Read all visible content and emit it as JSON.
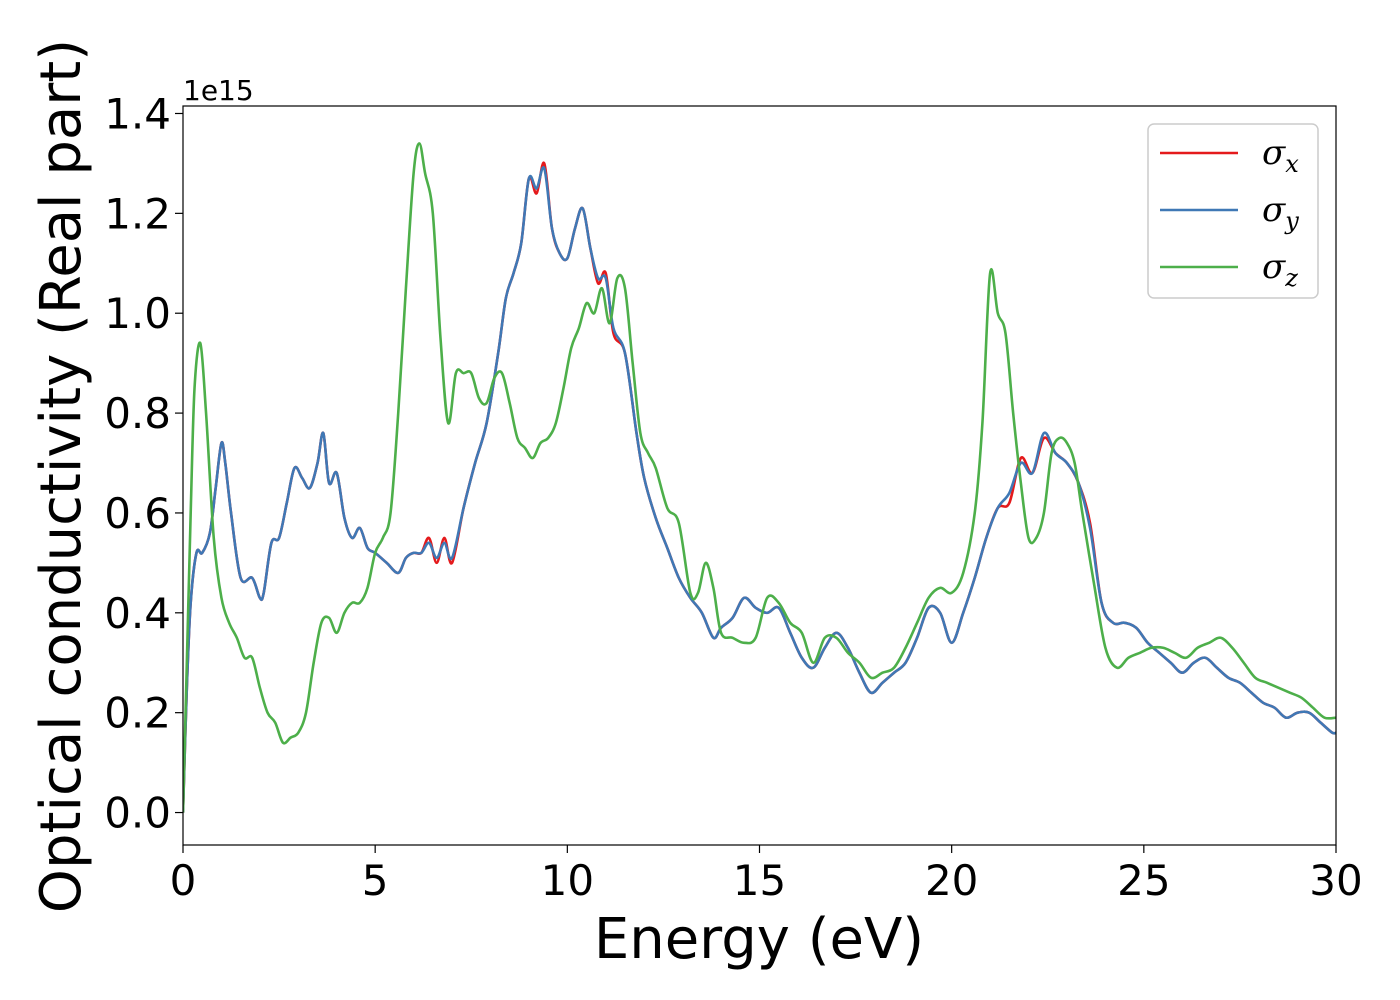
{
  "chart_data": {
    "type": "line",
    "title": "",
    "xlabel": "Energy (eV)",
    "ylabel": "Optical conductivity (Real part)",
    "y_offset_label": "1e15",
    "xlim": [
      0,
      30
    ],
    "ylim": [
      -0.065,
      1.415
    ],
    "x_ticks": [
      0,
      5,
      10,
      15,
      20,
      25,
      30
    ],
    "x_tick_labels": [
      "0",
      "5",
      "10",
      "15",
      "20",
      "25",
      "30"
    ],
    "y_ticks": [
      0.0,
      0.2,
      0.4,
      0.6,
      0.8,
      1.0,
      1.2,
      1.4
    ],
    "y_tick_labels": [
      "0.0",
      "0.2",
      "0.4",
      "0.6",
      "0.8",
      "1.0",
      "1.2",
      "1.4"
    ],
    "grid": false,
    "legend_position": "top-right",
    "series": [
      {
        "name": "σ",
        "subscript": "x",
        "color": "#e41a1c",
        "x": [
          0,
          0.1,
          0.2,
          0.35,
          0.5,
          0.7,
          0.85,
          1.0,
          1.1,
          1.25,
          1.5,
          1.8,
          2.0,
          2.1,
          2.3,
          2.5,
          2.7,
          2.9,
          3.1,
          3.3,
          3.5,
          3.65,
          3.8,
          4.0,
          4.2,
          4.4,
          4.6,
          4.8,
          5.0,
          5.3,
          5.6,
          5.8,
          6.0,
          6.2,
          6.4,
          6.6,
          6.8,
          7.0,
          7.3,
          7.6,
          7.9,
          8.2,
          8.4,
          8.6,
          8.8,
          9.0,
          9.2,
          9.4,
          9.6,
          9.8,
          10.0,
          10.2,
          10.4,
          10.6,
          10.8,
          11.0,
          11.2,
          11.5,
          11.8,
          12.0,
          12.3,
          12.6,
          12.9,
          13.2,
          13.5,
          13.8,
          14.0,
          14.3,
          14.6,
          14.9,
          15.2,
          15.5,
          15.8,
          16.1,
          16.4,
          16.7,
          17.0,
          17.3,
          17.6,
          17.9,
          18.2,
          18.5,
          18.8,
          19.1,
          19.4,
          19.7,
          20.0,
          20.3,
          20.6,
          20.9,
          21.2,
          21.5,
          21.8,
          22.1,
          22.4,
          22.7,
          23.0,
          23.3,
          23.6,
          23.9,
          24.2,
          24.5,
          24.8,
          25.1,
          25.4,
          25.7,
          26.0,
          26.3,
          26.6,
          26.9,
          27.2,
          27.5,
          27.8,
          28.1,
          28.4,
          28.7,
          29.0,
          29.3,
          29.6,
          29.9,
          30.0
        ],
        "values": [
          0.0,
          0.25,
          0.42,
          0.52,
          0.52,
          0.56,
          0.65,
          0.74,
          0.7,
          0.6,
          0.47,
          0.47,
          0.43,
          0.44,
          0.54,
          0.55,
          0.62,
          0.69,
          0.67,
          0.65,
          0.7,
          0.76,
          0.66,
          0.68,
          0.59,
          0.55,
          0.57,
          0.53,
          0.52,
          0.5,
          0.48,
          0.51,
          0.52,
          0.52,
          0.55,
          0.5,
          0.55,
          0.5,
          0.61,
          0.7,
          0.78,
          0.92,
          1.03,
          1.08,
          1.14,
          1.27,
          1.24,
          1.3,
          1.17,
          1.12,
          1.11,
          1.17,
          1.21,
          1.13,
          1.06,
          1.08,
          0.96,
          0.92,
          0.76,
          0.67,
          0.59,
          0.53,
          0.47,
          0.43,
          0.4,
          0.35,
          0.37,
          0.39,
          0.43,
          0.41,
          0.4,
          0.41,
          0.36,
          0.31,
          0.29,
          0.33,
          0.36,
          0.33,
          0.28,
          0.24,
          0.26,
          0.28,
          0.3,
          0.35,
          0.41,
          0.4,
          0.34,
          0.4,
          0.47,
          0.55,
          0.61,
          0.62,
          0.71,
          0.68,
          0.75,
          0.72,
          0.7,
          0.66,
          0.58,
          0.42,
          0.38,
          0.38,
          0.37,
          0.34,
          0.32,
          0.3,
          0.28,
          0.3,
          0.31,
          0.29,
          0.27,
          0.26,
          0.24,
          0.22,
          0.21,
          0.19,
          0.2,
          0.2,
          0.18,
          0.16,
          0.16
        ]
      },
      {
        "name": "σ",
        "subscript": "y",
        "color": "#3f78b5",
        "x": [
          0,
          0.1,
          0.2,
          0.35,
          0.5,
          0.7,
          0.85,
          1.0,
          1.1,
          1.25,
          1.5,
          1.8,
          2.0,
          2.1,
          2.3,
          2.5,
          2.7,
          2.9,
          3.1,
          3.3,
          3.5,
          3.65,
          3.8,
          4.0,
          4.2,
          4.4,
          4.6,
          4.8,
          5.0,
          5.3,
          5.6,
          5.8,
          6.0,
          6.2,
          6.4,
          6.6,
          6.8,
          7.0,
          7.3,
          7.6,
          7.9,
          8.2,
          8.4,
          8.6,
          8.8,
          9.0,
          9.2,
          9.4,
          9.6,
          9.8,
          10.0,
          10.2,
          10.4,
          10.6,
          10.8,
          11.0,
          11.2,
          11.5,
          11.8,
          12.0,
          12.3,
          12.6,
          12.9,
          13.2,
          13.5,
          13.8,
          14.0,
          14.3,
          14.6,
          14.9,
          15.2,
          15.5,
          15.8,
          16.1,
          16.4,
          16.7,
          17.0,
          17.3,
          17.6,
          17.9,
          18.2,
          18.5,
          18.8,
          19.1,
          19.4,
          19.7,
          20.0,
          20.3,
          20.6,
          20.9,
          21.2,
          21.5,
          21.8,
          22.1,
          22.4,
          22.7,
          23.0,
          23.3,
          23.6,
          23.9,
          24.2,
          24.5,
          24.8,
          25.1,
          25.4,
          25.7,
          26.0,
          26.3,
          26.6,
          26.9,
          27.2,
          27.5,
          27.8,
          28.1,
          28.4,
          28.7,
          29.0,
          29.3,
          29.6,
          29.9,
          30.0
        ],
        "values": [
          0.0,
          0.25,
          0.42,
          0.52,
          0.52,
          0.56,
          0.65,
          0.74,
          0.7,
          0.6,
          0.47,
          0.47,
          0.43,
          0.44,
          0.54,
          0.55,
          0.62,
          0.69,
          0.67,
          0.65,
          0.7,
          0.76,
          0.66,
          0.68,
          0.59,
          0.55,
          0.57,
          0.53,
          0.52,
          0.5,
          0.48,
          0.51,
          0.52,
          0.52,
          0.54,
          0.51,
          0.54,
          0.51,
          0.61,
          0.7,
          0.78,
          0.92,
          1.03,
          1.08,
          1.14,
          1.27,
          1.25,
          1.29,
          1.17,
          1.12,
          1.11,
          1.17,
          1.21,
          1.13,
          1.07,
          1.07,
          0.97,
          0.92,
          0.76,
          0.67,
          0.59,
          0.53,
          0.47,
          0.43,
          0.4,
          0.35,
          0.37,
          0.39,
          0.43,
          0.41,
          0.4,
          0.41,
          0.36,
          0.31,
          0.29,
          0.33,
          0.36,
          0.33,
          0.28,
          0.24,
          0.26,
          0.28,
          0.3,
          0.35,
          0.41,
          0.4,
          0.34,
          0.4,
          0.47,
          0.55,
          0.61,
          0.64,
          0.7,
          0.68,
          0.76,
          0.72,
          0.7,
          0.66,
          0.57,
          0.42,
          0.38,
          0.38,
          0.37,
          0.34,
          0.32,
          0.3,
          0.28,
          0.3,
          0.31,
          0.29,
          0.27,
          0.26,
          0.24,
          0.22,
          0.21,
          0.19,
          0.2,
          0.2,
          0.18,
          0.16,
          0.16
        ]
      },
      {
        "name": "σ",
        "subscript": "z",
        "color": "#4daf4a",
        "x": [
          0,
          0.1,
          0.2,
          0.3,
          0.45,
          0.6,
          0.8,
          1.0,
          1.2,
          1.4,
          1.6,
          1.8,
          2.0,
          2.2,
          2.4,
          2.6,
          2.8,
          3.0,
          3.2,
          3.4,
          3.6,
          3.8,
          4.0,
          4.2,
          4.4,
          4.6,
          4.8,
          5.0,
          5.2,
          5.4,
          5.6,
          5.8,
          6.0,
          6.15,
          6.3,
          6.5,
          6.7,
          6.9,
          7.1,
          7.3,
          7.5,
          7.7,
          7.9,
          8.1,
          8.3,
          8.5,
          8.7,
          8.9,
          9.1,
          9.3,
          9.5,
          9.7,
          9.9,
          10.1,
          10.3,
          10.5,
          10.7,
          10.9,
          11.1,
          11.3,
          11.5,
          11.7,
          11.9,
          12.1,
          12.3,
          12.6,
          12.9,
          13.2,
          13.4,
          13.6,
          13.8,
          14.0,
          14.3,
          14.6,
          14.9,
          15.2,
          15.5,
          15.8,
          16.1,
          16.4,
          16.7,
          17.0,
          17.3,
          17.6,
          17.9,
          18.2,
          18.5,
          18.8,
          19.1,
          19.4,
          19.7,
          20.0,
          20.3,
          20.6,
          20.8,
          21.0,
          21.2,
          21.4,
          21.6,
          21.8,
          22.0,
          22.2,
          22.4,
          22.6,
          22.8,
          23.0,
          23.2,
          23.4,
          23.7,
          24.0,
          24.3,
          24.6,
          24.9,
          25.2,
          25.5,
          25.8,
          26.1,
          26.4,
          26.7,
          27.0,
          27.3,
          27.6,
          27.9,
          28.2,
          28.5,
          28.8,
          29.1,
          29.4,
          29.7,
          30.0
        ],
        "values": [
          0.0,
          0.3,
          0.6,
          0.85,
          0.94,
          0.8,
          0.55,
          0.43,
          0.38,
          0.35,
          0.31,
          0.31,
          0.25,
          0.2,
          0.18,
          0.14,
          0.15,
          0.16,
          0.2,
          0.3,
          0.38,
          0.39,
          0.36,
          0.4,
          0.42,
          0.42,
          0.45,
          0.52,
          0.55,
          0.6,
          0.8,
          1.05,
          1.28,
          1.34,
          1.28,
          1.2,
          0.95,
          0.78,
          0.88,
          0.88,
          0.88,
          0.83,
          0.82,
          0.87,
          0.88,
          0.82,
          0.75,
          0.73,
          0.71,
          0.74,
          0.75,
          0.78,
          0.85,
          0.93,
          0.97,
          1.02,
          1.0,
          1.05,
          0.98,
          1.07,
          1.05,
          0.9,
          0.76,
          0.72,
          0.69,
          0.61,
          0.58,
          0.44,
          0.44,
          0.5,
          0.45,
          0.36,
          0.35,
          0.34,
          0.35,
          0.43,
          0.42,
          0.38,
          0.36,
          0.3,
          0.35,
          0.35,
          0.32,
          0.3,
          0.27,
          0.28,
          0.29,
          0.33,
          0.38,
          0.43,
          0.45,
          0.44,
          0.48,
          0.6,
          0.78,
          1.08,
          1.0,
          0.96,
          0.8,
          0.66,
          0.55,
          0.55,
          0.6,
          0.72,
          0.75,
          0.74,
          0.7,
          0.6,
          0.46,
          0.33,
          0.29,
          0.31,
          0.32,
          0.33,
          0.33,
          0.32,
          0.31,
          0.33,
          0.34,
          0.35,
          0.33,
          0.3,
          0.27,
          0.26,
          0.25,
          0.24,
          0.23,
          0.21,
          0.19,
          0.19
        ]
      }
    ]
  }
}
